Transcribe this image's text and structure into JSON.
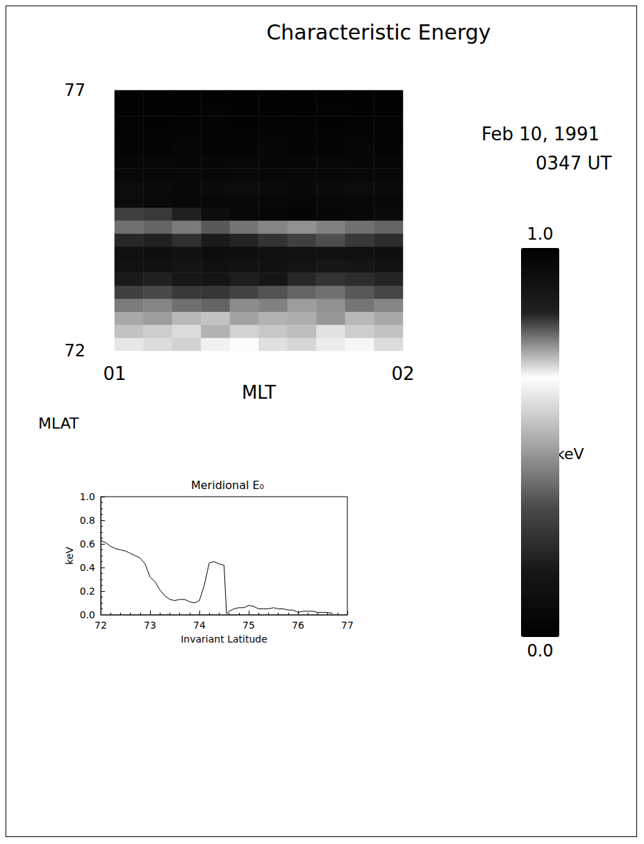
{
  "chart_data": [
    {
      "type": "heatmap",
      "title": "Characteristic Energy",
      "annotations": [
        "Feb 10, 1991",
        "0347 UT"
      ],
      "x": [
        1.05,
        1.15,
        1.25,
        1.35,
        1.45,
        1.55,
        1.65,
        1.75,
        1.85,
        1.95
      ],
      "y": [
        72.125,
        72.375,
        72.625,
        72.875,
        73.125,
        73.375,
        73.625,
        73.875,
        74.125,
        74.375,
        74.625,
        74.875,
        75.125,
        75.375,
        75.625,
        75.875,
        76.125,
        76.375,
        76.625,
        76.875
      ],
      "values": [
        [
          0.62,
          0.6,
          0.58,
          0.64,
          0.66,
          0.61,
          0.59,
          0.63,
          0.65,
          0.6
        ],
        [
          0.55,
          0.57,
          0.6,
          0.52,
          0.58,
          0.56,
          0.54,
          0.61,
          0.57,
          0.55
        ],
        [
          0.5,
          0.48,
          0.53,
          0.55,
          0.49,
          0.52,
          0.51,
          0.47,
          0.53,
          0.5
        ],
        [
          0.42,
          0.44,
          0.4,
          0.38,
          0.45,
          0.43,
          0.48,
          0.46,
          0.41,
          0.44
        ],
        [
          0.3,
          0.33,
          0.28,
          0.27,
          0.31,
          0.35,
          0.38,
          0.4,
          0.36,
          0.32
        ],
        [
          0.18,
          0.2,
          0.17,
          0.15,
          0.19,
          0.16,
          0.22,
          0.26,
          0.24,
          0.21
        ],
        [
          0.14,
          0.13,
          0.15,
          0.12,
          0.14,
          0.13,
          0.15,
          0.17,
          0.16,
          0.14
        ],
        [
          0.12,
          0.11,
          0.13,
          0.1,
          0.11,
          0.12,
          0.14,
          0.13,
          0.12,
          0.11
        ],
        [
          0.22,
          0.2,
          0.25,
          0.18,
          0.21,
          0.26,
          0.3,
          0.34,
          0.28,
          0.24
        ],
        [
          0.4,
          0.38,
          0.42,
          0.36,
          0.41,
          0.44,
          0.46,
          0.43,
          0.4,
          0.38
        ],
        [
          0.3,
          0.28,
          0.2,
          0.1,
          0.06,
          0.05,
          0.04,
          0.05,
          0.06,
          0.08
        ],
        [
          0.08,
          0.07,
          0.06,
          0.06,
          0.07,
          0.06,
          0.05,
          0.06,
          0.07,
          0.06
        ],
        [
          0.09,
          0.08,
          0.07,
          0.08,
          0.09,
          0.08,
          0.07,
          0.08,
          0.09,
          0.08
        ],
        [
          0.06,
          0.05,
          0.06,
          0.05,
          0.06,
          0.05,
          0.06,
          0.05,
          0.06,
          0.05
        ],
        [
          0.05,
          0.06,
          0.05,
          0.05,
          0.06,
          0.05,
          0.05,
          0.06,
          0.05,
          0.05
        ],
        [
          0.04,
          0.04,
          0.05,
          0.04,
          0.04,
          0.05,
          0.04,
          0.04,
          0.05,
          0.04
        ],
        [
          0.03,
          0.03,
          0.04,
          0.03,
          0.03,
          0.04,
          0.03,
          0.03,
          0.04,
          0.03
        ],
        [
          0.03,
          0.02,
          0.03,
          0.03,
          0.02,
          0.03,
          0.03,
          0.02,
          0.03,
          0.03
        ],
        [
          0.02,
          0.02,
          0.02,
          0.03,
          0.02,
          0.02,
          0.02,
          0.03,
          0.02,
          0.02
        ],
        [
          0.02,
          0.02,
          0.02,
          0.02,
          0.02,
          0.02,
          0.02,
          0.02,
          0.02,
          0.02
        ]
      ],
      "xlabel": "MLT",
      "xlim": [
        1,
        2
      ],
      "xticks": [
        {
          "value": 1,
          "label": "01"
        },
        {
          "value": 2,
          "label": "02"
        }
      ],
      "ylabel": "MLAT",
      "ylim": [
        72,
        77
      ],
      "yticks": [
        72,
        77
      ],
      "colorbar": {
        "range": [
          0,
          1
        ],
        "ticks": [
          {
            "value": 0,
            "label": "0.0"
          },
          {
            "value": 1,
            "label": "1.0"
          }
        ],
        "label": "keV"
      },
      "grid": false
    },
    {
      "type": "line",
      "title": "Meridional E₀",
      "x": [
        72.0,
        72.1,
        72.2,
        72.3,
        72.4,
        72.5,
        72.6,
        72.7,
        72.8,
        72.9,
        73.0,
        73.1,
        73.2,
        73.3,
        73.4,
        73.5,
        73.6,
        73.7,
        73.8,
        73.9,
        74.0,
        74.1,
        74.2,
        74.3,
        74.4,
        74.5,
        74.55,
        74.6,
        74.7,
        74.8,
        74.9,
        75.0,
        75.1,
        75.2,
        75.3,
        75.4,
        75.5,
        75.6,
        75.7,
        75.8,
        75.9,
        76.0,
        76.1,
        76.2,
        76.3,
        76.4,
        76.5,
        76.6,
        76.7
      ],
      "values": [
        0.63,
        0.61,
        0.58,
        0.56,
        0.55,
        0.54,
        0.52,
        0.5,
        0.48,
        0.43,
        0.32,
        0.28,
        0.21,
        0.16,
        0.13,
        0.12,
        0.13,
        0.13,
        0.11,
        0.1,
        0.12,
        0.25,
        0.44,
        0.45,
        0.43,
        0.42,
        0.01,
        0.03,
        0.05,
        0.06,
        0.06,
        0.08,
        0.07,
        0.05,
        0.05,
        0.05,
        0.06,
        0.05,
        0.05,
        0.04,
        0.04,
        0.02,
        0.03,
        0.03,
        0.03,
        0.02,
        0.02,
        0.02,
        0.01
      ],
      "color": "#000000",
      "xlabel": "Invariant Latitude",
      "ylabel": "keV",
      "xlim": [
        72,
        77
      ],
      "xticks": [
        72,
        73,
        74,
        75,
        76,
        77
      ],
      "ylim": [
        0,
        1
      ],
      "yticks": [
        {
          "value": 0,
          "label": "0.0"
        },
        {
          "value": 0.2,
          "label": "0.2"
        },
        {
          "value": 0.4,
          "label": "0.4"
        },
        {
          "value": 0.6,
          "label": "0.6"
        },
        {
          "value": 0.8,
          "label": "0.8"
        },
        {
          "value": 1,
          "label": "1.0"
        }
      ],
      "grid": false
    }
  ]
}
